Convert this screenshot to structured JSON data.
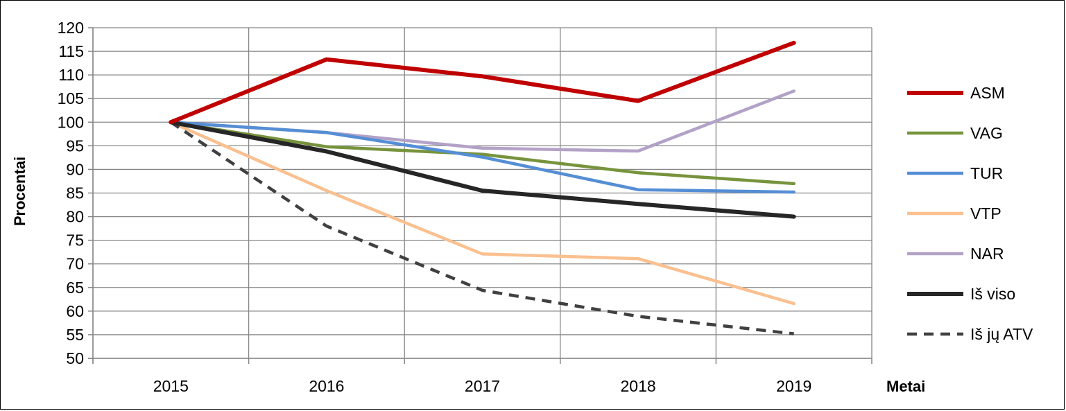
{
  "chart_data": {
    "type": "line",
    "title": "",
    "xlabel": "Metai",
    "ylabel": "Procentai",
    "categories": [
      "2015",
      "2016",
      "2017",
      "2018",
      "2019"
    ],
    "ylim": [
      50,
      120
    ],
    "yticks": [
      50,
      55,
      60,
      65,
      70,
      75,
      80,
      85,
      90,
      95,
      100,
      105,
      110,
      115,
      120
    ],
    "grid": true,
    "legend_position": "right",
    "series": [
      {
        "name": "ASM",
        "values": [
          100,
          113.3,
          109.7,
          104.5,
          116.8
        ],
        "color": "#C00000",
        "style": "solid"
      },
      {
        "name": "VAG",
        "values": [
          100,
          94.8,
          93.2,
          89.3,
          87.0
        ],
        "color": "#77933C",
        "style": "solid"
      },
      {
        "name": "TUR",
        "values": [
          100,
          97.8,
          92.6,
          85.7,
          85.2
        ],
        "color": "#558ED5",
        "style": "solid"
      },
      {
        "name": "VTP",
        "values": [
          100,
          85.5,
          72.1,
          71.1,
          61.6
        ],
        "color": "#FAC090",
        "style": "solid"
      },
      {
        "name": "NAR",
        "values": [
          100,
          97.8,
          94.5,
          93.9,
          106.6
        ],
        "color": "#B3A2C7",
        "style": "solid"
      },
      {
        "name": "Iš viso",
        "values": [
          100,
          93.8,
          85.5,
          82.7,
          80.0
        ],
        "color": "#262626",
        "style": "solid"
      },
      {
        "name": "Iš jų ATV",
        "values": [
          100,
          78.0,
          64.4,
          58.9,
          55.2
        ],
        "color": "#404040",
        "style": "dashed"
      }
    ]
  }
}
